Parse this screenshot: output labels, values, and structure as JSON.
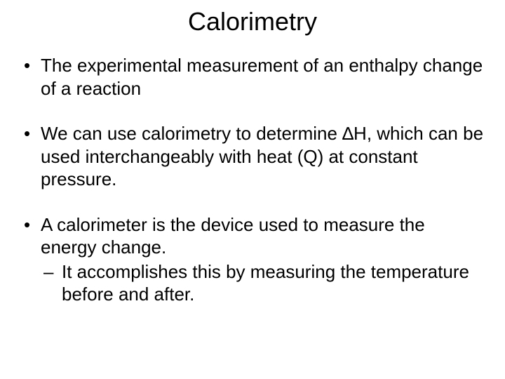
{
  "title": "Calorimetry",
  "bullets": {
    "b1": "The experimental measurement of an enthalpy change of a reaction",
    "b2": "We can use calorimetry to determine ∆H, which can be used interchangeably with heat (Q) at constant pressure.",
    "b3": "A calorimeter is the device used to measure the energy change.",
    "b3sub": "It accomplishes this by measuring the temperature before and after."
  },
  "colors": {
    "background": "#ffffff",
    "text": "#000000"
  },
  "typography": {
    "title_fontsize": 36,
    "body_fontsize": 26,
    "font_family": "Arial"
  }
}
